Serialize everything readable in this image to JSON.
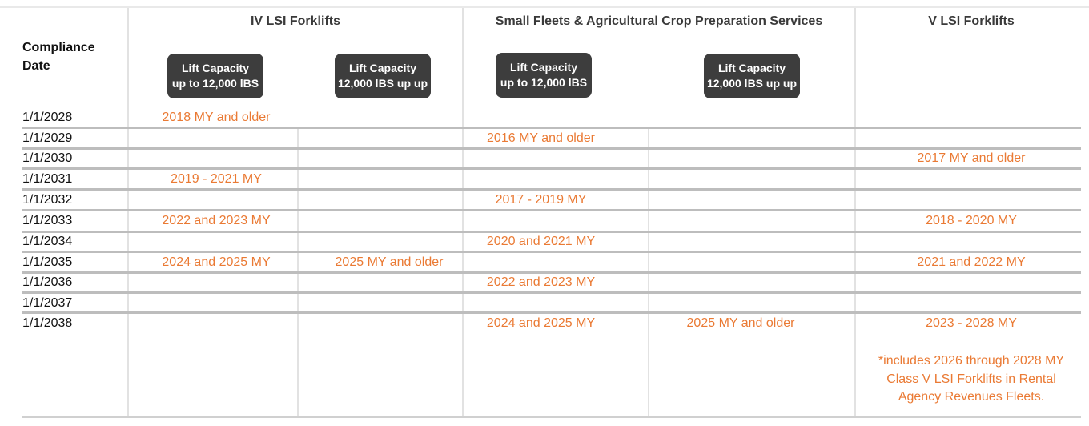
{
  "groups": {
    "iv_lsi": "IV LSI Forklifts",
    "small_fleets": "Small Fleets & Agricultural Crop Preparation Services",
    "v_lsi": "V LSI Forklifts"
  },
  "compliance_header": {
    "line1": "Compliance",
    "line2": "Date"
  },
  "capacity_badges": [
    {
      "line1": "Lift Capacity",
      "line2": "up to 12,000 lBS"
    },
    {
      "line1": "Lift Capacity",
      "line2": "12,000 lBS up up"
    },
    {
      "line1": "Lift Capacity",
      "line2": "up to 12,000 lBS"
    },
    {
      "line1": "Lift Capacity",
      "line2": "12,000 lBS up up"
    }
  ],
  "dates": [
    "1/1/2028",
    "1/1/2029",
    "1/1/2030",
    "1/1/2031",
    "1/1/2032",
    "1/1/2033",
    "1/1/2034",
    "1/1/2035",
    "1/1/2036",
    "1/1/2037",
    "1/1/2038"
  ],
  "cells": {
    "r2028_iv_lo": "2018 MY and older",
    "r2029_sf_lo": "2016 MY and older",
    "r2030_v": "2017 MY and older",
    "r2031_iv_lo": "2019 - 2021 MY",
    "r2032_sf_lo": "2017 - 2019 MY",
    "r2033_iv_lo": "2022 and 2023 MY",
    "r2033_v": "2018 - 2020 MY",
    "r2034_sf_lo": "2020 and 2021 MY",
    "r2035_iv_lo": "2024 and 2025 MY",
    "r2035_iv_hi": "2025 MY and older",
    "r2035_v": "2021 and 2022 MY",
    "r2036_sf_lo": "2022 and 2023 MY",
    "r2038_sf_lo": "2024 and 2025 MY",
    "r2038_sf_hi": "2025 MY and older",
    "r2038_v": "2023 - 2028 MY"
  },
  "note": {
    "line1": "*includes 2026 through 2028 MY",
    "line2": "Class V LSI Forklifts in Rental",
    "line3": "Agency Revenues Fleets."
  },
  "colors": {
    "accent": "#ea7a34",
    "badge": "#3d3d3d",
    "rule": "#bdbdbd"
  }
}
